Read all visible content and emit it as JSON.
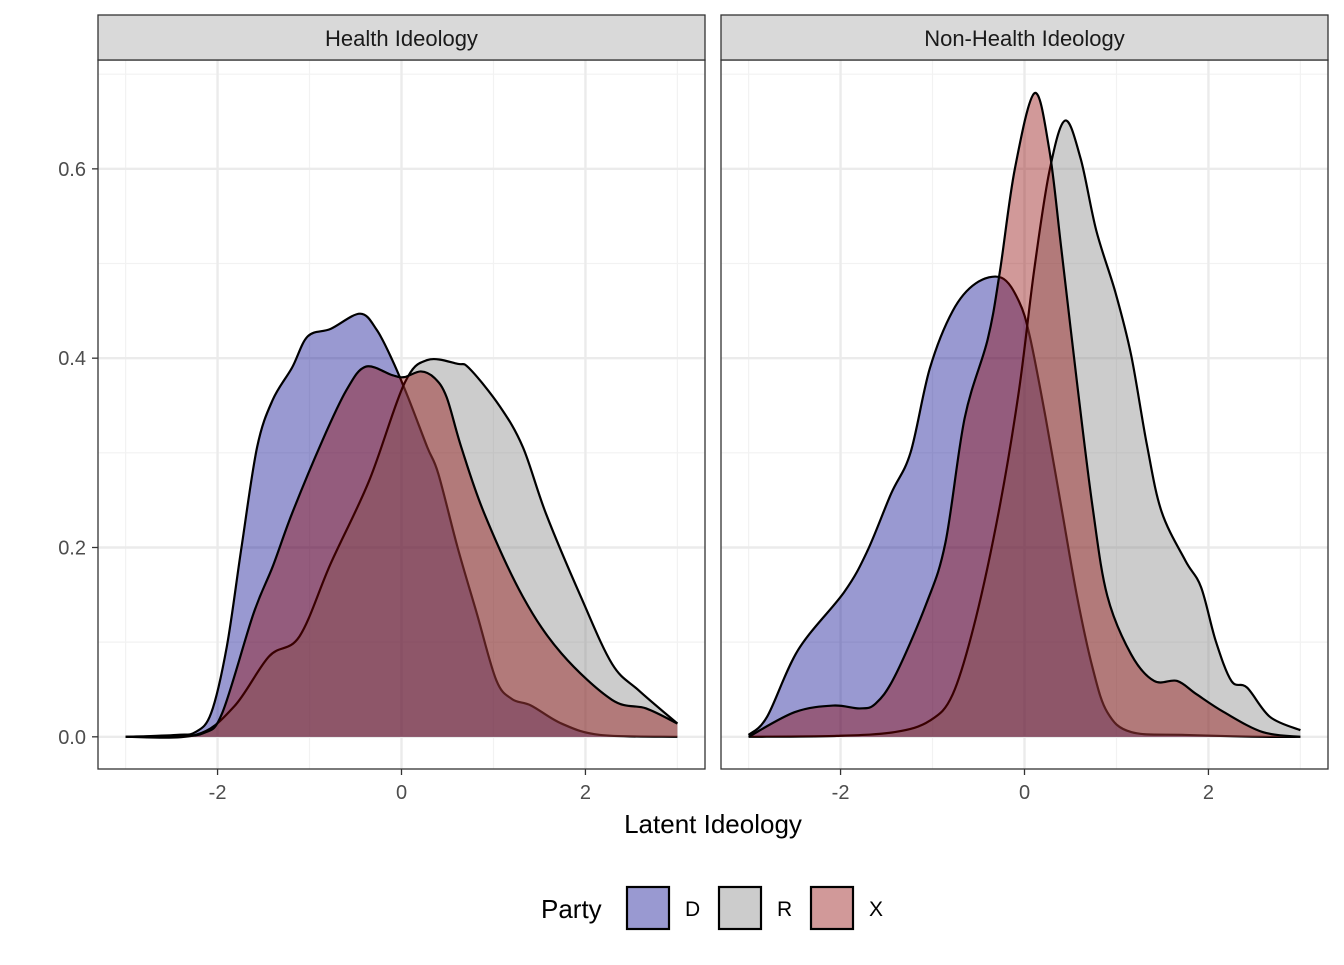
{
  "chart_data": [
    {
      "type": "area",
      "panel_title": "Health Ideology",
      "xlim": [
        -3.3,
        3.3
      ],
      "ylim": [
        -0.034,
        0.715
      ],
      "x_ticks": [
        "-2",
        "0",
        "2"
      ],
      "y_ticks": [
        "0.0",
        "0.2",
        "0.4",
        "0.6"
      ],
      "grid": true,
      "series": [
        {
          "name": "D",
          "x": [
            -3,
            -2.45,
            -2.24,
            -2.07,
            -1.9,
            -1.74,
            -1.57,
            -1.4,
            -1.19,
            -1.02,
            -0.77,
            -0.45,
            -0.27,
            -0.1,
            0.07,
            0.28,
            0.4,
            0.61,
            0.82,
            1.03,
            1.2,
            1.41,
            1.74,
            2.16,
            3
          ],
          "y": [
            0,
            0.002,
            0.005,
            0.025,
            0.095,
            0.2,
            0.306,
            0.356,
            0.39,
            0.423,
            0.431,
            0.447,
            0.43,
            0.398,
            0.359,
            0.306,
            0.278,
            0.2,
            0.13,
            0.06,
            0.04,
            0.033,
            0.014,
            0.002,
            0
          ]
        },
        {
          "name": "R",
          "x": [
            -3,
            -2.24,
            -1.82,
            -1.44,
            -1.11,
            -0.77,
            -0.35,
            0.03,
            0.28,
            0.61,
            0.74,
            1.07,
            1.32,
            1.57,
            1.95,
            2.29,
            2.58,
            3
          ],
          "y": [
            0,
            0.002,
            0.032,
            0.085,
            0.106,
            0.183,
            0.271,
            0.373,
            0.398,
            0.394,
            0.389,
            0.349,
            0.306,
            0.236,
            0.148,
            0.077,
            0.049,
            0.014
          ]
        },
        {
          "name": "X",
          "x": [
            -3,
            -2.45,
            -2.15,
            -1.95,
            -1.61,
            -1.4,
            -1.19,
            -0.86,
            -0.6,
            -0.39,
            -0.1,
            0.03,
            0.21,
            0.36,
            0.49,
            0.65,
            0.9,
            1.32,
            1.74,
            2.29,
            2.66,
            3
          ],
          "y": [
            0,
            0.001,
            0.004,
            0.025,
            0.13,
            0.18,
            0.236,
            0.313,
            0.366,
            0.391,
            0.382,
            0.38,
            0.386,
            0.379,
            0.359,
            0.306,
            0.236,
            0.148,
            0.088,
            0.039,
            0.03,
            0.014
          ]
        }
      ]
    },
    {
      "type": "area",
      "panel_title": "Non-Health Ideology",
      "xlim": [
        -3.3,
        3.3
      ],
      "ylim": [
        -0.034,
        0.715
      ],
      "x_ticks": [
        "-2",
        "0",
        "2"
      ],
      "y_ticks": [],
      "grid": true,
      "series": [
        {
          "name": "D",
          "x": [
            -3,
            -2.8,
            -2.46,
            -1.96,
            -1.71,
            -1.45,
            -1.24,
            -1.03,
            -0.78,
            -0.53,
            -0.25,
            -0.06,
            0.06,
            0.23,
            0.4,
            0.57,
            0.74,
            0.9,
            1.16,
            1.75,
            2.59,
            3
          ],
          "y": [
            0.002,
            0.021,
            0.092,
            0.153,
            0.196,
            0.257,
            0.3,
            0.389,
            0.45,
            0.479,
            0.485,
            0.46,
            0.422,
            0.337,
            0.243,
            0.149,
            0.073,
            0.026,
            0.005,
            0.002,
            0,
            0
          ]
        },
        {
          "name": "R",
          "x": [
            -3,
            -2.04,
            -1.41,
            -1.03,
            -0.78,
            -0.53,
            -0.27,
            -0.06,
            0.105,
            0.27,
            0.44,
            0.61,
            0.78,
            0.99,
            1.16,
            1.33,
            1.49,
            1.75,
            1.92,
            2.08,
            2.25,
            2.42,
            2.67,
            3
          ],
          "y": [
            0,
            0.001,
            0.005,
            0.017,
            0.045,
            0.125,
            0.243,
            0.366,
            0.493,
            0.597,
            0.651,
            0.611,
            0.535,
            0.469,
            0.403,
            0.309,
            0.238,
            0.186,
            0.158,
            0.101,
            0.059,
            0.052,
            0.021,
            0.007
          ]
        },
        {
          "name": "X",
          "x": [
            -3,
            -2.5,
            -2.08,
            -1.79,
            -1.62,
            -1.41,
            -1.07,
            -0.86,
            -0.65,
            -0.4,
            -0.27,
            -0.105,
            0.11,
            0.27,
            0.4,
            0.57,
            0.74,
            0.9,
            1.16,
            1.41,
            1.66,
            1.87,
            2.17,
            2.59,
            3
          ],
          "y": [
            0,
            0.026,
            0.033,
            0.03,
            0.035,
            0.064,
            0.14,
            0.205,
            0.337,
            0.42,
            0.49,
            0.6,
            0.68,
            0.62,
            0.516,
            0.375,
            0.243,
            0.149,
            0.087,
            0.059,
            0.059,
            0.045,
            0.026,
            0.005,
            0
          ]
        }
      ]
    }
  ],
  "xlabel": "Latent Ideology",
  "legend": {
    "title": "Party",
    "position": "bottom",
    "items": [
      {
        "label": "D",
        "color": "#00008B"
      },
      {
        "label": "R",
        "color": "#7F7F7F"
      },
      {
        "label": "X",
        "color": "#8B0000"
      }
    ]
  },
  "fill_opacity": 0.4
}
